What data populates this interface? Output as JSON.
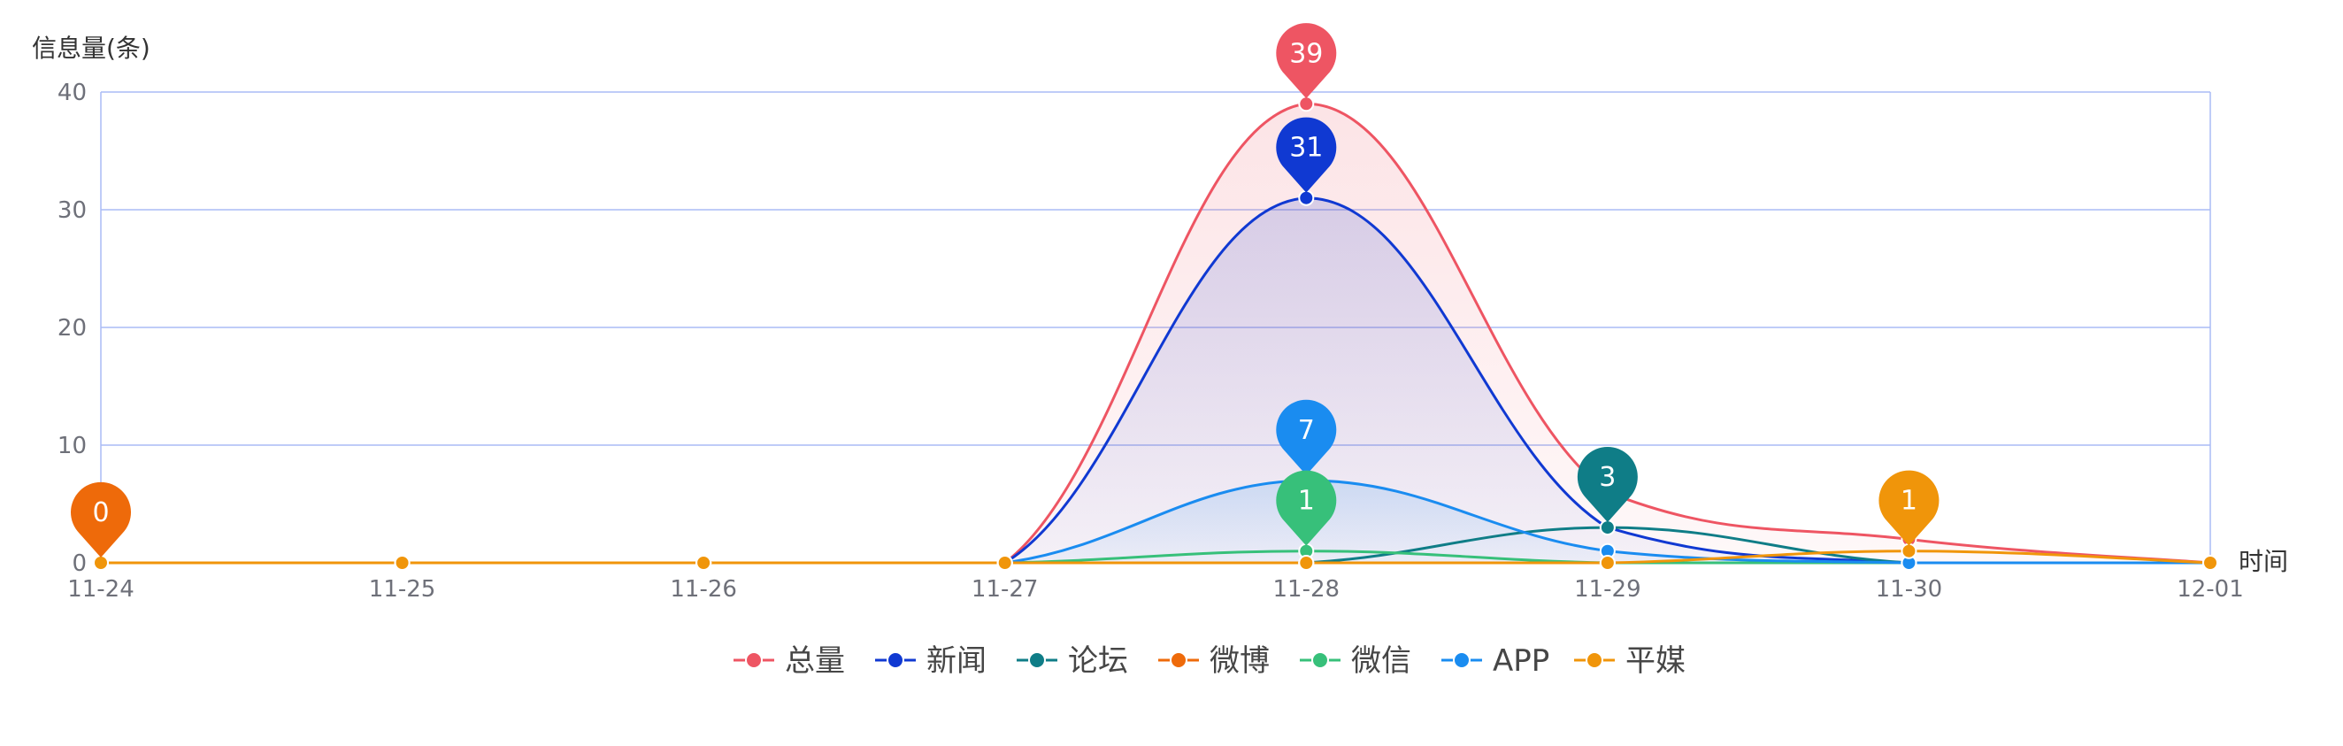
{
  "chart_data": {
    "type": "line",
    "y_axis_name": "信息量(条)",
    "x_axis_name": "时间",
    "categories": [
      "11-24",
      "11-25",
      "11-26",
      "11-27",
      "11-28",
      "11-29",
      "11-30",
      "12-01"
    ],
    "ylim": [
      0,
      40
    ],
    "y_ticks": [
      0,
      10,
      20,
      30,
      40
    ],
    "grid": true,
    "smooth": true,
    "legend_position": "bottom-center",
    "series": [
      {
        "name": "总量",
        "color": "#ee5563",
        "values": [
          0,
          0,
          0,
          0,
          39,
          6,
          2,
          0
        ],
        "area": true
      },
      {
        "name": "新闻",
        "color": "#1039d2",
        "values": [
          0,
          0,
          0,
          0,
          31,
          3,
          0,
          0
        ],
        "area": true
      },
      {
        "name": "论坛",
        "color": "#0f7d87",
        "values": [
          0,
          0,
          0,
          0,
          0,
          3,
          0,
          0
        ],
        "area": false
      },
      {
        "name": "微博",
        "color": "#ee6a0a",
        "values": [
          0,
          0,
          0,
          0,
          0,
          0,
          0,
          0
        ],
        "area": false
      },
      {
        "name": "微信",
        "color": "#37c07a",
        "values": [
          0,
          0,
          0,
          0,
          1,
          0,
          0,
          0
        ],
        "area": false
      },
      {
        "name": "APP",
        "color": "#1a8cf0",
        "values": [
          0,
          0,
          0,
          0,
          7,
          1,
          0,
          0
        ],
        "area": true
      },
      {
        "name": "平媒",
        "color": "#f0950a",
        "values": [
          0,
          0,
          0,
          0,
          0,
          0,
          1,
          0
        ],
        "area": false
      }
    ],
    "markers": [
      {
        "series": "总量",
        "category": "11-28",
        "label": "39"
      },
      {
        "series": "新闻",
        "category": "11-28",
        "label": "31"
      },
      {
        "series": "APP",
        "category": "11-28",
        "label": "7"
      },
      {
        "series": "微信",
        "category": "11-28",
        "label": "1"
      },
      {
        "series": "论坛",
        "category": "11-29",
        "label": "3"
      },
      {
        "series": "平媒",
        "category": "11-30",
        "label": "1"
      },
      {
        "series": "微博",
        "category": "11-24",
        "label": "0"
      }
    ]
  }
}
